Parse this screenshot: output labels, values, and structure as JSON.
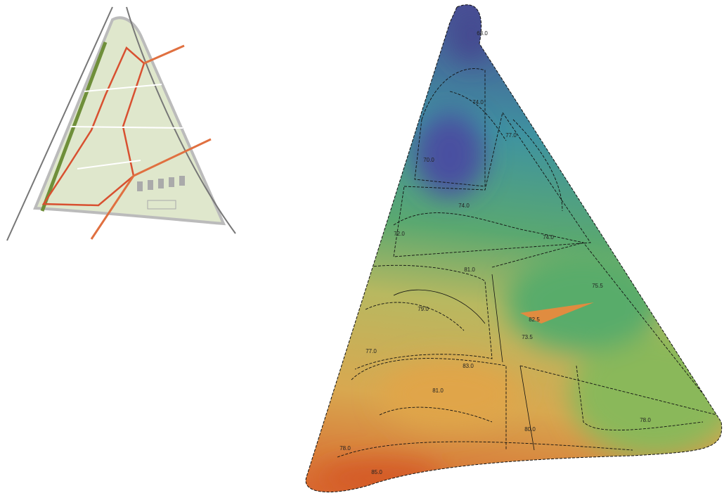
{
  "contour_labels": [
    "68.0",
    "74.0",
    "77.0",
    "70.0",
    "74.0",
    "72.0",
    "74.0",
    "81.0",
    "75.5",
    "79.0",
    "82.5",
    "73.5",
    "77.0",
    "83.0",
    "81.0",
    "80.0",
    "78.0",
    "78.0",
    "85.0"
  ]
}
